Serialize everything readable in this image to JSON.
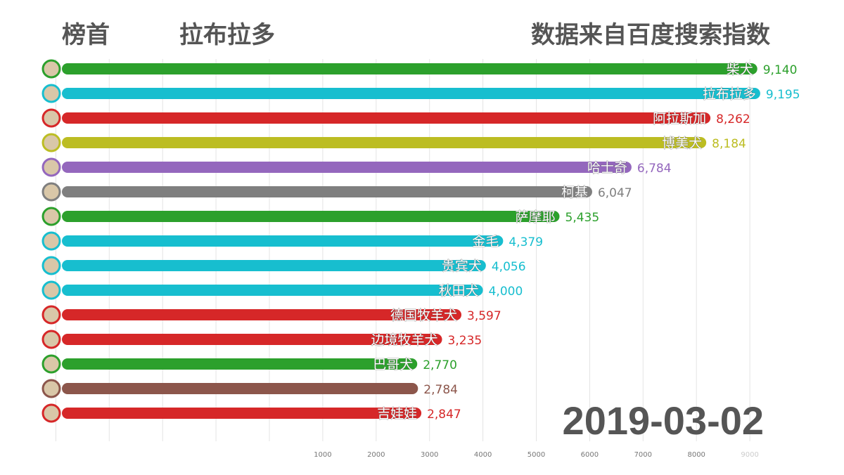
{
  "header": {
    "left": "榜首",
    "leader": "拉布拉多",
    "source": "数据来自百度搜索指数"
  },
  "date": "2019-03-02",
  "chart_data": {
    "type": "bar",
    "orientation": "horizontal",
    "x_ticks": [
      1000,
      2000,
      3000,
      4000,
      5000,
      6000,
      7000,
      8000,
      9000
    ],
    "grid": true,
    "bars": [
      {
        "name": "柴犬",
        "value": 9140,
        "color": "#2ca02c"
      },
      {
        "name": "拉布拉多",
        "value": 9195,
        "color": "#17becf"
      },
      {
        "name": "阿拉斯加",
        "value": 8262,
        "color": "#d62728"
      },
      {
        "name": "博美犬",
        "value": 8184,
        "color": "#bcbd22"
      },
      {
        "name": "哈士奇",
        "value": 6784,
        "color": "#9467bd"
      },
      {
        "name": "柯基",
        "value": 6047,
        "color": "#7f7f7f"
      },
      {
        "name": "萨摩耶",
        "value": 5435,
        "color": "#2ca02c"
      },
      {
        "name": "金毛",
        "value": 4379,
        "color": "#17becf"
      },
      {
        "name": "贵宾犬",
        "value": 4056,
        "color": "#17becf"
      },
      {
        "name": "秋田犬",
        "value": 4000,
        "color": "#17becf"
      },
      {
        "name": "德国牧羊犬",
        "value": 3597,
        "color": "#d62728"
      },
      {
        "name": "边境牧羊犬",
        "value": 3235,
        "color": "#d62728"
      },
      {
        "name": "巴哥犬",
        "value": 2770,
        "color": "#2ca02c"
      },
      {
        "name": "",
        "value": 2784,
        "color": "#8c564b"
      },
      {
        "name": "吉娃娃",
        "value": 2847,
        "color": "#d62728"
      }
    ]
  }
}
